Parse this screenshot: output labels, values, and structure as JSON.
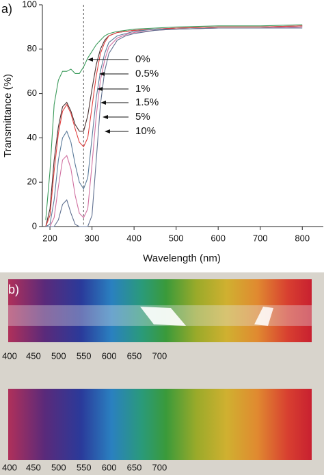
{
  "chart_data": {
    "type": "line",
    "panel_label": "a)",
    "x_label": "Wavelength (nm)",
    "y_label": "Transmittance (%)",
    "x": [
      190,
      200,
      210,
      220,
      230,
      240,
      250,
      260,
      270,
      280,
      290,
      300,
      310,
      320,
      330,
      340,
      360,
      380,
      400,
      450,
      500,
      600,
      700,
      800
    ],
    "series": [
      {
        "name": "0%",
        "color": "#3a9a5a",
        "values": [
          3,
          25,
          55,
          66,
          70,
          70,
          71,
          69,
          69,
          72,
          76,
          79,
          82,
          84,
          86,
          87,
          88,
          88.5,
          89,
          89.5,
          90,
          90.5,
          90.5,
          91
        ]
      },
      {
        "name": "0.5%",
        "color": "#4a3030",
        "values": [
          0,
          8,
          30,
          45,
          54,
          56,
          52,
          46,
          43,
          43,
          50,
          62,
          73,
          80,
          84,
          86,
          87.5,
          88,
          88.5,
          89,
          89.5,
          90,
          90,
          90.5
        ]
      },
      {
        "name": "1%",
        "color": "#e04040",
        "values": [
          0,
          5,
          25,
          42,
          52,
          55,
          51,
          44,
          38,
          36,
          40,
          54,
          68,
          78,
          83,
          86,
          87.5,
          88,
          88.5,
          89,
          89.5,
          90,
          90,
          90.5
        ]
      },
      {
        "name": "1.5%",
        "color": "#5a7a9a",
        "values": [
          0,
          1,
          12,
          30,
          40,
          43,
          38,
          28,
          20,
          17,
          22,
          40,
          58,
          70,
          78,
          83,
          86,
          87,
          88,
          89,
          89,
          89.5,
          89.5,
          90
        ]
      },
      {
        "name": "5%",
        "color": "#d070a0",
        "values": [
          0,
          0,
          4,
          18,
          30,
          32,
          26,
          14,
          6,
          4,
          8,
          28,
          50,
          66,
          75,
          81,
          85,
          86.5,
          87.5,
          88.5,
          89,
          89.5,
          89.5,
          90
        ]
      },
      {
        "name": "10%",
        "color": "#607090",
        "values": [
          0,
          0,
          0,
          3,
          10,
          12,
          6,
          1,
          0,
          0,
          0,
          5,
          30,
          55,
          70,
          78,
          84,
          86,
          87,
          88.5,
          89,
          89.5,
          89.5,
          89.5
        ]
      }
    ],
    "vline_x": 280,
    "xlim": [
      182,
      850
    ],
    "xticks": [
      200,
      300,
      400,
      500,
      600,
      700,
      800
    ],
    "ylim": [
      0,
      100
    ],
    "yticks": [
      0,
      20,
      40,
      60,
      80,
      100
    ],
    "grid": false
  },
  "photo": {
    "label": "b)",
    "scale_top": [
      400,
      450,
      500,
      550,
      600,
      650,
      700
    ],
    "scale_bottom": [
      400,
      450,
      500,
      550,
      600,
      650,
      700
    ]
  }
}
